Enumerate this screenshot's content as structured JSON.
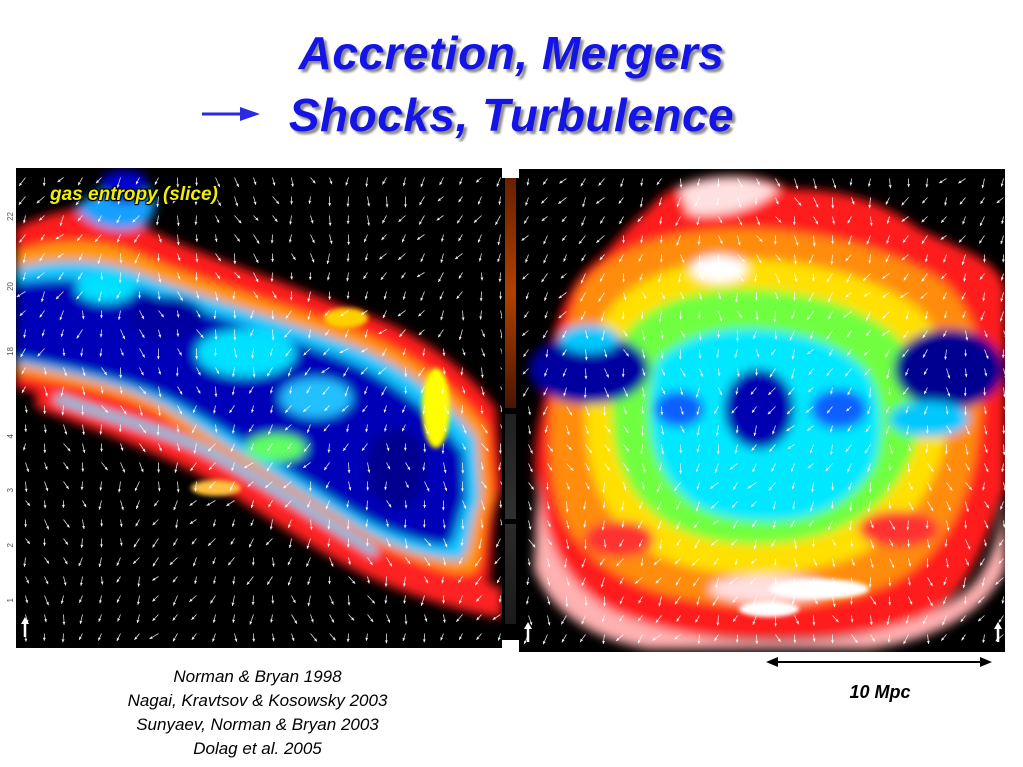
{
  "title": {
    "line1": "Accretion, Mergers",
    "line2": "Shocks, Turbulence"
  },
  "left_panel": {
    "label": "gas entropy (slice)",
    "axis_ticks": [
      "22",
      "20",
      "18",
      "4",
      "3",
      "2",
      "1"
    ]
  },
  "references": [
    "Norman & Bryan 1998",
    "Nagai, Kravtsov & Kosowsky 2003",
    "Sunyaev, Norman & Bryan 2003",
    "Dolag et al. 2005"
  ],
  "scale_bar": {
    "label": "10 Mpc"
  },
  "colors": {
    "title": "#1414e6",
    "arrow": "#2a2ae0",
    "label": "#f0f000",
    "colormap": [
      "#000060",
      "#0000c8",
      "#0080ff",
      "#00e0ff",
      "#60ff60",
      "#ffff00",
      "#ff8000",
      "#ff1010",
      "#ffc0c0",
      "#ffffff"
    ]
  }
}
